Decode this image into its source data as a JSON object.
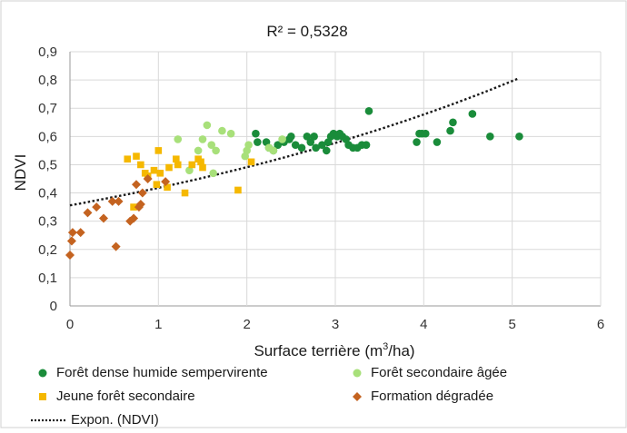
{
  "chart_data": {
    "type": "scatter",
    "title": "R² = 0,5328",
    "xlabel": "Surface terrière (m",
    "xlabel_sup": "3",
    "xlabel_end": "/ha)",
    "ylabel": "NDVI",
    "xlim": [
      0,
      6
    ],
    "ylim": [
      0,
      0.9
    ],
    "grid": true,
    "legend_position": "bottom",
    "x_ticks": [
      "0",
      "1",
      "2",
      "3",
      "4",
      "5",
      "6"
    ],
    "y_ticks": [
      "0",
      "0,1",
      "0,2",
      "0,3",
      "0,4",
      "0,5",
      "0,6",
      "0,7",
      "0,8",
      "0,9"
    ],
    "trendline": {
      "name": "Expon. (NDVI)",
      "type": "exponential",
      "a": 0.356,
      "b": 0.161,
      "x_range": [
        0,
        5.08
      ],
      "color": "#1a1a1a"
    },
    "series": [
      {
        "name": "Forêt dense humide sempervirente",
        "marker": "circle",
        "color": "#1a8c3a",
        "points": [
          [
            2.1,
            0.61
          ],
          [
            2.12,
            0.58
          ],
          [
            2.22,
            0.58
          ],
          [
            2.25,
            0.56
          ],
          [
            2.3,
            0.55
          ],
          [
            2.35,
            0.57
          ],
          [
            2.42,
            0.58
          ],
          [
            2.48,
            0.59
          ],
          [
            2.5,
            0.6
          ],
          [
            2.55,
            0.57
          ],
          [
            2.62,
            0.56
          ],
          [
            2.68,
            0.6
          ],
          [
            2.72,
            0.58
          ],
          [
            2.76,
            0.6
          ],
          [
            2.78,
            0.56
          ],
          [
            2.85,
            0.57
          ],
          [
            2.9,
            0.55
          ],
          [
            2.92,
            0.58
          ],
          [
            2.95,
            0.6
          ],
          [
            2.98,
            0.61
          ],
          [
            3.02,
            0.6
          ],
          [
            3.05,
            0.61
          ],
          [
            3.08,
            0.6
          ],
          [
            3.12,
            0.59
          ],
          [
            3.15,
            0.57
          ],
          [
            3.2,
            0.56
          ],
          [
            3.25,
            0.56
          ],
          [
            3.3,
            0.57
          ],
          [
            3.35,
            0.57
          ],
          [
            3.38,
            0.69
          ],
          [
            3.92,
            0.58
          ],
          [
            3.95,
            0.61
          ],
          [
            3.98,
            0.61
          ],
          [
            4.02,
            0.61
          ],
          [
            4.15,
            0.58
          ],
          [
            4.3,
            0.62
          ],
          [
            4.33,
            0.65
          ],
          [
            4.55,
            0.68
          ],
          [
            4.75,
            0.6
          ],
          [
            5.08,
            0.6
          ]
        ]
      },
      {
        "name": "Forêt secondaire âgée",
        "marker": "circle",
        "color": "#a8e07a",
        "points": [
          [
            1.22,
            0.59
          ],
          [
            1.35,
            0.48
          ],
          [
            1.45,
            0.55
          ],
          [
            1.5,
            0.59
          ],
          [
            1.55,
            0.64
          ],
          [
            1.6,
            0.57
          ],
          [
            1.62,
            0.47
          ],
          [
            1.65,
            0.55
          ],
          [
            1.72,
            0.62
          ],
          [
            1.82,
            0.61
          ],
          [
            1.98,
            0.53
          ],
          [
            2.0,
            0.55
          ],
          [
            2.02,
            0.57
          ],
          [
            2.25,
            0.56
          ],
          [
            2.3,
            0.55
          ],
          [
            2.4,
            0.59
          ]
        ]
      },
      {
        "name": "Jeune forêt secondaire",
        "marker": "square",
        "color": "#f5b800",
        "points": [
          [
            0.65,
            0.52
          ],
          [
            0.72,
            0.35
          ],
          [
            0.75,
            0.53
          ],
          [
            0.8,
            0.5
          ],
          [
            0.85,
            0.47
          ],
          [
            0.88,
            0.46
          ],
          [
            0.95,
            0.48
          ],
          [
            1.0,
            0.55
          ],
          [
            1.02,
            0.47
          ],
          [
            1.1,
            0.42
          ],
          [
            1.12,
            0.49
          ],
          [
            1.2,
            0.52
          ],
          [
            1.22,
            0.5
          ],
          [
            1.3,
            0.4
          ],
          [
            1.38,
            0.5
          ],
          [
            1.45,
            0.52
          ],
          [
            1.48,
            0.51
          ],
          [
            1.5,
            0.49
          ],
          [
            1.9,
            0.41
          ],
          [
            2.05,
            0.51
          ],
          [
            0.98,
            0.43
          ]
        ]
      },
      {
        "name": "Formation dégradée",
        "marker": "diamond",
        "color": "#c46320",
        "points": [
          [
            0.0,
            0.18
          ],
          [
            0.02,
            0.23
          ],
          [
            0.03,
            0.26
          ],
          [
            0.12,
            0.26
          ],
          [
            0.2,
            0.33
          ],
          [
            0.3,
            0.35
          ],
          [
            0.38,
            0.31
          ],
          [
            0.48,
            0.37
          ],
          [
            0.52,
            0.21
          ],
          [
            0.55,
            0.37
          ],
          [
            0.68,
            0.3
          ],
          [
            0.72,
            0.31
          ],
          [
            0.75,
            0.43
          ],
          [
            0.78,
            0.35
          ],
          [
            0.8,
            0.36
          ],
          [
            0.82,
            0.4
          ],
          [
            0.88,
            0.45
          ],
          [
            1.08,
            0.44
          ]
        ]
      }
    ]
  }
}
